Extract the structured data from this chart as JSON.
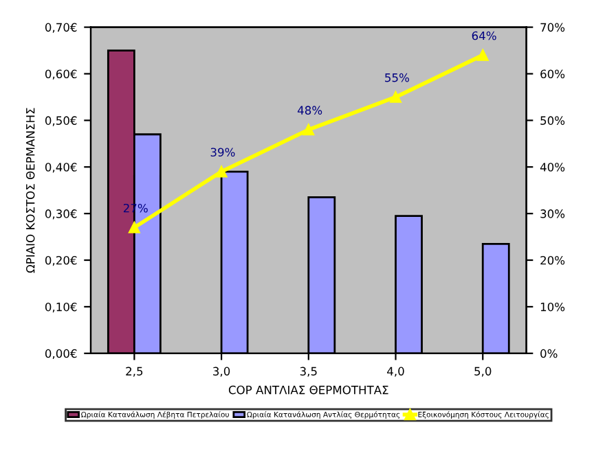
{
  "chart_data": {
    "type": "bar",
    "xlabel": "COP ΑΝΤΛΙΑΣ ΘΕΡΜΟΤΗΤΑΣ",
    "ylabel": "ΩΡΙΑΙΟ ΚΟΣΤΟΣ ΘΕΡΜΑΝΣΗΣ",
    "categories": [
      "2,5",
      "3,0",
      "3,5",
      "4,0",
      "5,0"
    ],
    "series": [
      {
        "name": "Ωριαία Κατανάλωση Λέβητα Πετρελαίου",
        "color": "#993366",
        "values": [
          0.65,
          null,
          null,
          null,
          null
        ]
      },
      {
        "name": "Ωριαία Κατανάλωση Αντλίας Θερμότητας",
        "color": "#9999ff",
        "values": [
          0.47,
          0.39,
          0.335,
          0.295,
          0.235
        ]
      },
      {
        "name": "Εξοικονόμηση Κόστους Λειτουργίας",
        "color": "#ffff00",
        "type": "line",
        "axis": "y2",
        "marker": "triangle",
        "values": [
          27,
          39,
          48,
          55,
          64
        ],
        "value_labels": [
          "27%",
          "39%",
          "48%",
          "55%",
          "64%"
        ]
      }
    ],
    "ylim": [
      0,
      0.7
    ],
    "yticks": [
      {
        "value": 0,
        "label": "0,00€"
      },
      {
        "value": 0.1,
        "label": "0,10€"
      },
      {
        "value": 0.2,
        "label": "0,20€"
      },
      {
        "value": 0.3,
        "label": "0,30€"
      },
      {
        "value": 0.4,
        "label": "0,40€"
      },
      {
        "value": 0.5,
        "label": "0,50€"
      },
      {
        "value": 0.6,
        "label": "0,60€"
      },
      {
        "value": 0.7,
        "label": "0,70€"
      }
    ],
    "y2lim": [
      0,
      70
    ],
    "y2ticks": [
      {
        "value": 0,
        "label": "0%"
      },
      {
        "value": 10,
        "label": "10%"
      },
      {
        "value": 20,
        "label": "20%"
      },
      {
        "value": 30,
        "label": "30%"
      },
      {
        "value": 40,
        "label": "40%"
      },
      {
        "value": 50,
        "label": "50%"
      },
      {
        "value": 60,
        "label": "60%"
      },
      {
        "value": 70,
        "label": "70%"
      }
    ],
    "grid": false,
    "legend": "bottom"
  }
}
